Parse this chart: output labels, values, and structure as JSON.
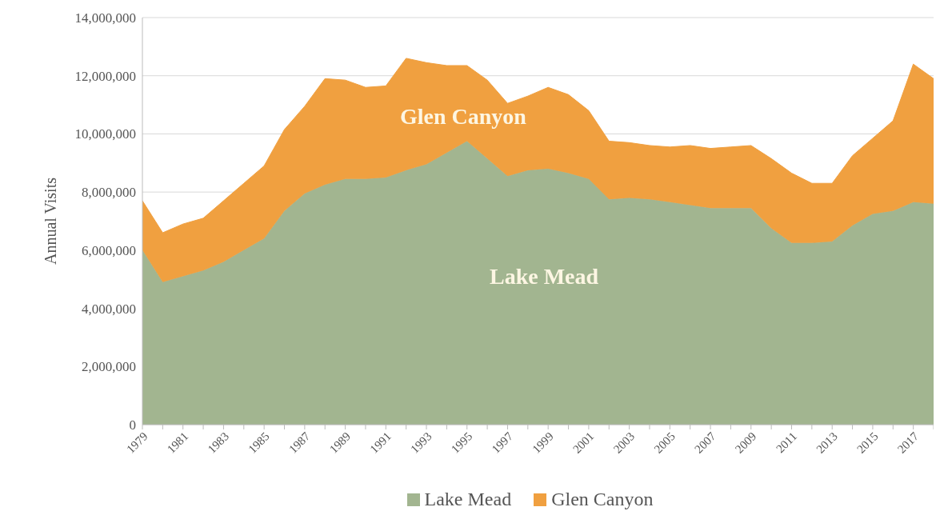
{
  "chart_data": {
    "type": "area",
    "stacked": true,
    "ylabel": "Annual Visits",
    "categories": [
      "1979",
      null,
      "1981",
      null,
      "1983",
      null,
      "1985",
      null,
      "1987",
      null,
      "1989",
      null,
      "1991",
      null,
      "1993",
      null,
      "1995",
      null,
      "1997",
      null,
      "1999",
      null,
      "2001",
      null,
      "2003",
      null,
      "2005",
      null,
      "2007",
      null,
      "2009",
      null,
      "2011",
      null,
      "2013",
      null,
      "2015",
      null,
      "2017",
      null
    ],
    "series": [
      {
        "name": "Lake Mead",
        "color": "#a2b590",
        "values": [
          6000000,
          4900000,
          5100000,
          5300000,
          5600000,
          6000000,
          6400000,
          7350000,
          7950000,
          8250000,
          8450000,
          8450000,
          8500000,
          8750000,
          8950000,
          9350000,
          9750000,
          9150000,
          8550000,
          8750000,
          8800000,
          8650000,
          8450000,
          7750000,
          7800000,
          7750000,
          7650000,
          7550000,
          7450000,
          7450000,
          7450000,
          6750000,
          6250000,
          6250000,
          6300000,
          6850000,
          7250000,
          7350000,
          7650000,
          7600000
        ]
      },
      {
        "name": "Glen Canyon",
        "color": "#f0a040",
        "values": [
          1700000,
          1700000,
          1800000,
          1800000,
          2100000,
          2300000,
          2500000,
          2800000,
          3000000,
          3650000,
          3400000,
          3150000,
          3150000,
          3850000,
          3500000,
          3000000,
          2600000,
          2700000,
          2500000,
          2550000,
          2800000,
          2700000,
          2350000,
          2000000,
          1900000,
          1850000,
          1900000,
          2050000,
          2050000,
          2100000,
          2150000,
          2400000,
          2400000,
          2050000,
          2000000,
          2400000,
          2600000,
          3100000,
          4750000,
          4300000
        ]
      }
    ],
    "ylim": [
      0,
      14000000
    ],
    "yticks": [
      0,
      {
        "value": 2000000,
        "label": "2,000,000"
      },
      {
        "value": 4000000,
        "label": "4,000,000"
      },
      {
        "value": 6000000,
        "label": "6,000,000"
      },
      {
        "value": 8000000,
        "label": "8,000,000"
      },
      {
        "value": 10000000,
        "label": "10,000,000"
      },
      {
        "value": 12000000,
        "label": "12,000,000"
      },
      {
        "value": 14000000,
        "label": "14,000,000"
      }
    ],
    "grid": "y",
    "legend": "bottom",
    "annotations": [
      "Glen Canyon",
      "Lake Mead"
    ]
  }
}
